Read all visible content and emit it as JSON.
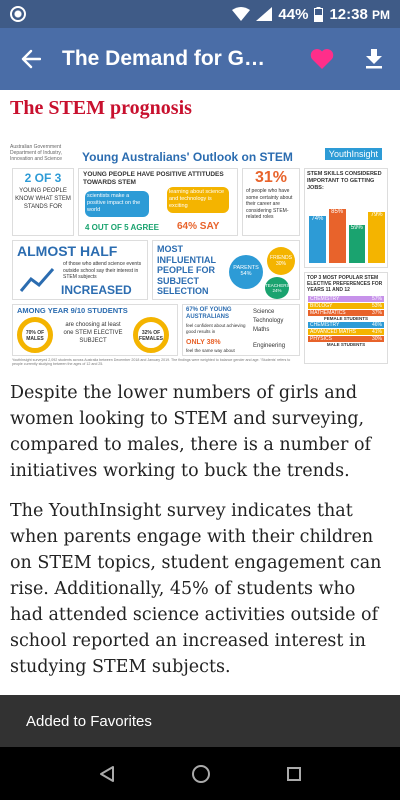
{
  "status_bar": {
    "battery": "44%",
    "time": "12:38",
    "time_suffix": "PM"
  },
  "app_bar": {
    "title": "The Demand for G…"
  },
  "article": {
    "heading": "The STEM prognosis",
    "paragraphs": [
      "Despite the lower numbers of girls and women looking to STEM and surveying, compared to males, there is a number of initiatives working to buck the trends.",
      "The YouthInsight survey indicates that when parents engage with their children on STEM topics, student engagement can rise. Additionally, 45% of students who had attended science activities outside of school reported an increased interest in studying STEM subjects."
    ]
  },
  "infographic": {
    "gov_text": "Australian Government Department of Industry, Innovation and Science",
    "title": "Young Australians' Outlook on STEM",
    "brand": "YouthInsight",
    "stat_2_of_3": "2 OF 3",
    "stat_2_of_3_text": "YOUNG PEOPLE KNOW WHAT STEM STANDS FOR",
    "positive_heading": "YOUNG PEOPLE HAVE POSITIVE ATTITUDES TOWARDS STEM",
    "bubble_1": "scientists make a positive impact on the world",
    "bubble_2": "learning about science and technology is exciting",
    "stat_4_of_5": "4 OUT OF 5 AGREE",
    "stat_64": "64% SAY",
    "stat_31": "31%",
    "stat_31_text": "of people who have some certainty about their career are considering STEM-related roles",
    "skills_heading": "STEM SKILLS CONSIDERED IMPORTANT TO GETTING JOBS:",
    "skills": [
      {
        "letter": "S",
        "value": "74%",
        "color": "#2d9bd6"
      },
      {
        "letter": "T",
        "value": "85%",
        "color": "#e8632b"
      },
      {
        "letter": "E",
        "value": "59%",
        "color": "#1aa36f"
      },
      {
        "letter": "M",
        "value": "79%",
        "color": "#f4b400"
      }
    ],
    "almost_half": "ALMOST HALF",
    "almost_half_text": "of those who attend science events outside school say their interest in STEM subjects",
    "increased": "INCREASED",
    "most_influential": "MOST INFLUENTIAL PEOPLE FOR SUBJECT SELECTION",
    "parents": "PARENTS 54%",
    "friends": "FRIENDS 30%",
    "teachers": "TEACHERS 24%",
    "top3_heading": "TOP 3 MOST POPULAR STEM ELECTIVE PREFERENCES FOR YEARS 11 AND 12",
    "female_rows": [
      {
        "name": "CHEMISTRY",
        "value": "57%"
      },
      {
        "name": "BIOLOGY",
        "value": "53%"
      },
      {
        "name": "MATHEMATICS",
        "value": "37%"
      }
    ],
    "female_label": "FEMALE STUDENTS",
    "male_rows": [
      {
        "name": "CHEMISTRY",
        "value": "46%"
      },
      {
        "name": "ADVANCED MATHS",
        "value": "41%"
      },
      {
        "name": "PHYSICS",
        "value": "30%"
      }
    ],
    "male_label": "MALE STUDENTS",
    "year_heading": "AMONG YEAR 9/10 STUDENTS",
    "boys_pct": "70% OF MALES",
    "girls_pct": "32% OF FEMALES",
    "elective_text": "are choosing at least one STEM ELECTIVE SUBJECT",
    "sixty_seven": "67% OF YOUNG AUSTRALIANS",
    "sixty_seven_text": "feel confident about achieving good results in",
    "subjects": [
      "Science",
      "Technology",
      "Maths",
      "Engineering"
    ],
    "only_38": "ONLY 38%",
    "only_38_text": "feel the same way about",
    "footnote": "YouthInsight surveyed 2,092 students across Australia between December 2018 and January 2019. The findings were weighted to balance gender and age. 'Students' refers to people currently studying between the ages of 12 and 25."
  },
  "snackbar": {
    "message": "Added to Favorites"
  }
}
